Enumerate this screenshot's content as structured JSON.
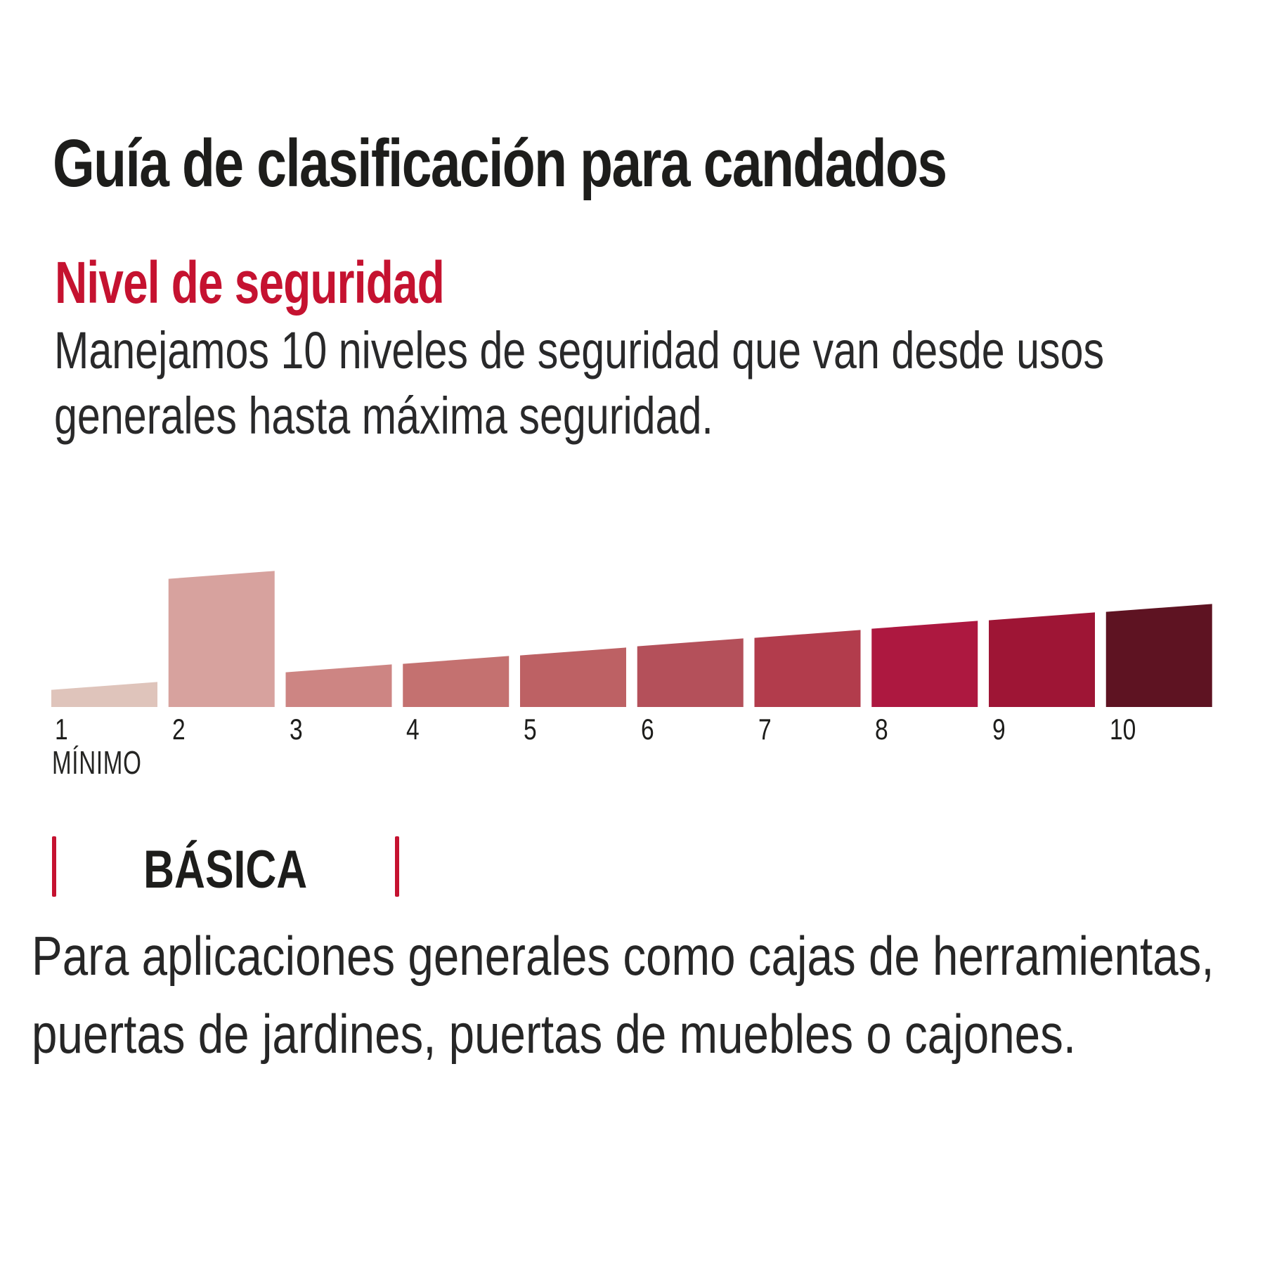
{
  "page": {
    "title": "Guía de clasificación para candados"
  },
  "section": {
    "heading": "Nivel de seguridad",
    "heading_color": "#c51230",
    "description_line1": "Manejamos 10 niveles de seguridad que van desde usos",
    "description_line2": "generales hasta máxima seguridad."
  },
  "chart_data": {
    "type": "bar",
    "title": "Nivel de seguridad",
    "categories": [
      "1",
      "2",
      "3",
      "4",
      "5",
      "6",
      "7",
      "8",
      "9",
      "10"
    ],
    "values": [
      30,
      188,
      55,
      67,
      79,
      92,
      104,
      117,
      129,
      141
    ],
    "value_note": "bar height at bar center in chart px units; every bar top is slanted, rising 11.2 px left-to-right so levels 1 and 3-10 form a continuous ascending wedge; level 2 is the highlighted tall bar",
    "highlighted_category": "2",
    "min_label": "MÍNIMO",
    "colors": [
      "#dfc4bb",
      "#d7a29e",
      "#cd8583",
      "#c47170",
      "#bd6164",
      "#b4505a",
      "#b23c4c",
      "#ad1840",
      "#9e1535",
      "#5e1322"
    ],
    "xlabel": "",
    "ylabel": "",
    "ylim": [
      0,
      206
    ],
    "grid": false,
    "legend": false
  },
  "category_section": {
    "label": "BÁSICA",
    "tick_color": "#c51230",
    "description_line1": "Para aplicaciones generales como cajas de herramientas,",
    "description_line2": "puertas de jardines, puertas de muebles o cajones."
  }
}
